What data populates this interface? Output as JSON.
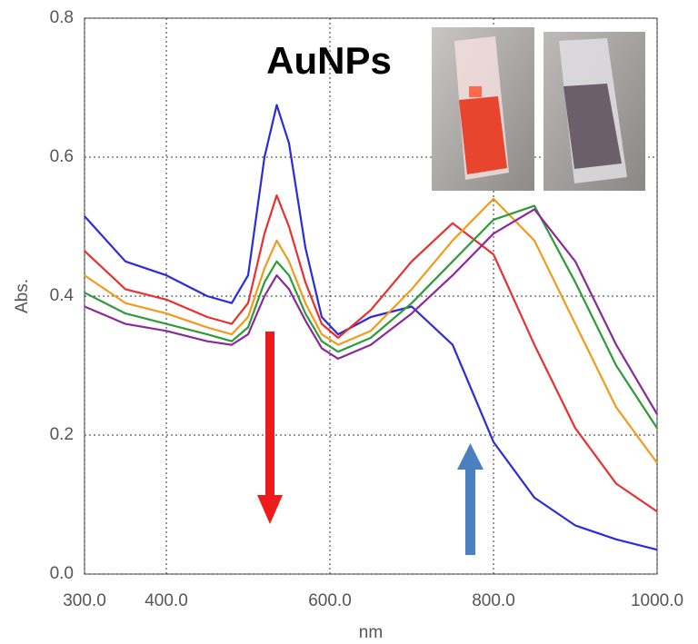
{
  "chart_data": {
    "type": "line",
    "annotation": "AuNPs",
    "xlabel": "nm",
    "ylabel": "Abs.",
    "x": [
      300,
      350,
      400,
      450,
      480,
      500,
      520,
      535,
      550,
      570,
      590,
      610,
      650,
      700,
      750,
      800,
      850,
      900,
      950,
      1000
    ],
    "series": [
      {
        "color": "#2b2bdc",
        "values": [
          0.515,
          0.45,
          0.43,
          0.4,
          0.39,
          0.43,
          0.6,
          0.675,
          0.62,
          0.47,
          0.37,
          0.345,
          0.37,
          0.385,
          0.33,
          0.19,
          0.11,
          0.07,
          0.05,
          0.035
        ]
      },
      {
        "color": "#e8302e",
        "values": [
          0.465,
          0.41,
          0.395,
          0.37,
          0.36,
          0.39,
          0.49,
          0.545,
          0.5,
          0.42,
          0.36,
          0.34,
          0.38,
          0.45,
          0.505,
          0.46,
          0.33,
          0.21,
          0.13,
          0.09
        ]
      },
      {
        "color": "#f39a1c",
        "values": [
          0.43,
          0.39,
          0.375,
          0.355,
          0.345,
          0.37,
          0.44,
          0.48,
          0.45,
          0.39,
          0.345,
          0.33,
          0.35,
          0.41,
          0.48,
          0.54,
          0.48,
          0.36,
          0.24,
          0.16
        ]
      },
      {
        "color": "#2f9a3a",
        "values": [
          0.405,
          0.375,
          0.36,
          0.345,
          0.335,
          0.355,
          0.42,
          0.45,
          0.43,
          0.375,
          0.335,
          0.32,
          0.34,
          0.39,
          0.45,
          0.51,
          0.53,
          0.42,
          0.3,
          0.21
        ]
      },
      {
        "color": "#8a2a9a",
        "values": [
          0.385,
          0.36,
          0.35,
          0.335,
          0.33,
          0.345,
          0.4,
          0.43,
          0.41,
          0.365,
          0.325,
          0.31,
          0.33,
          0.375,
          0.43,
          0.49,
          0.525,
          0.45,
          0.33,
          0.23
        ]
      }
    ],
    "xlim": [
      300,
      1000
    ],
    "xticks": [
      {
        "value": 300,
        "label": "300.0"
      },
      {
        "value": 400,
        "label": "400.0"
      },
      {
        "value": 600,
        "label": "600.0"
      },
      {
        "value": 800,
        "label": "800.0"
      },
      {
        "value": 1000,
        "label": "1000.0"
      }
    ],
    "ylim": [
      0,
      0.8
    ],
    "yticks": [
      {
        "value": 0,
        "label": "0.0"
      },
      0.2,
      0.4,
      0.6,
      0.8
    ],
    "grid": true
  }
}
